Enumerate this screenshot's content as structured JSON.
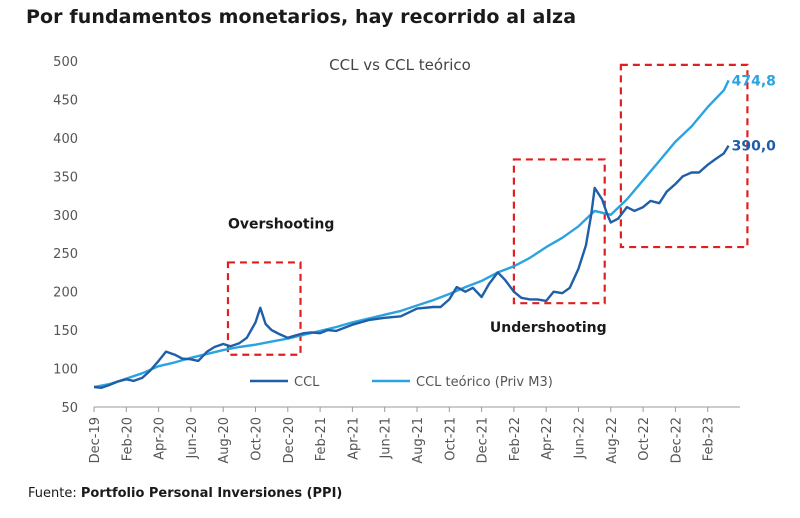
{
  "headline": "Por fundamentos monetarios, hay recorrido al alza",
  "source": {
    "prefix": "Fuente:",
    "name": "Portfolio Personal Inversiones (PPI)"
  },
  "colors": {
    "ccl": "#1f5fa8",
    "teorico": "#2ba3e0",
    "highlight": "#e02020"
  },
  "chart_data": {
    "type": "line",
    "title": "CCL vs CCL teórico",
    "xlabel": "",
    "ylabel": "",
    "ylim": [
      50,
      500
    ],
    "yticks": [
      50,
      100,
      150,
      200,
      250,
      300,
      350,
      400,
      450,
      500
    ],
    "xlim": [
      "2019-12",
      "2023-04"
    ],
    "xticks": [
      "Dec-19",
      "Feb-20",
      "Apr-20",
      "Jun-20",
      "Aug-20",
      "Oct-20",
      "Dec-20",
      "Feb-21",
      "Apr-21",
      "Jun-21",
      "Aug-21",
      "Oct-21",
      "Dec-21",
      "Feb-22",
      "Apr-22",
      "Jun-22",
      "Aug-22",
      "Oct-22",
      "Dec-22",
      "Feb-23"
    ],
    "legend_position": "bottom",
    "grid": false,
    "series": [
      {
        "name": "CCL",
        "x": [
          "2019-12-01",
          "2019-12-15",
          "2020-01-01",
          "2020-01-15",
          "2020-02-01",
          "2020-02-15",
          "2020-03-01",
          "2020-03-15",
          "2020-04-01",
          "2020-04-15",
          "2020-05-01",
          "2020-05-15",
          "2020-06-01",
          "2020-06-15",
          "2020-07-01",
          "2020-07-15",
          "2020-08-01",
          "2020-08-15",
          "2020-09-01",
          "2020-09-15",
          "2020-10-01",
          "2020-10-10",
          "2020-10-20",
          "2020-11-01",
          "2020-11-15",
          "2020-12-01",
          "2020-12-15",
          "2021-01-01",
          "2021-01-15",
          "2021-02-01",
          "2021-02-15",
          "2021-03-01",
          "2021-04-01",
          "2021-05-01",
          "2021-06-01",
          "2021-07-01",
          "2021-08-01",
          "2021-09-01",
          "2021-09-15",
          "2021-10-01",
          "2021-10-15",
          "2021-11-01",
          "2021-11-15",
          "2021-12-01",
          "2021-12-15",
          "2022-01-01",
          "2022-01-15",
          "2022-02-01",
          "2022-02-15",
          "2022-03-01",
          "2022-03-15",
          "2022-04-01",
          "2022-04-15",
          "2022-05-01",
          "2022-05-15",
          "2022-06-01",
          "2022-06-15",
          "2022-06-25",
          "2022-07-01",
          "2022-07-15",
          "2022-07-25",
          "2022-08-01",
          "2022-08-15",
          "2022-09-01",
          "2022-09-15",
          "2022-10-01",
          "2022-10-15",
          "2022-11-01",
          "2022-11-15",
          "2022-12-01",
          "2022-12-15",
          "2023-01-01",
          "2023-01-15",
          "2023-02-01",
          "2023-02-15",
          "2023-03-01",
          "2023-03-10"
        ],
        "values": [
          76,
          75,
          79,
          83,
          86,
          84,
          88,
          97,
          110,
          122,
          118,
          113,
          112,
          110,
          122,
          128,
          132,
          129,
          133,
          140,
          160,
          179,
          158,
          150,
          145,
          140,
          143,
          146,
          147,
          146,
          150,
          149,
          157,
          163,
          166,
          168,
          178,
          180,
          180,
          190,
          206,
          200,
          205,
          193,
          210,
          225,
          215,
          200,
          192,
          190,
          190,
          188,
          200,
          198,
          205,
          230,
          260,
          300,
          335,
          320,
          300,
          290,
          295,
          310,
          305,
          310,
          318,
          315,
          330,
          340,
          350,
          355,
          355,
          365,
          372,
          380,
          390
        ],
        "end_label": "390,0"
      },
      {
        "name": "CCL teórico (Priv M3)",
        "x": [
          "2019-12-01",
          "2020-01-01",
          "2020-02-01",
          "2020-03-01",
          "2020-04-01",
          "2020-05-01",
          "2020-06-01",
          "2020-07-01",
          "2020-08-01",
          "2020-09-01",
          "2020-10-01",
          "2020-11-01",
          "2020-12-01",
          "2021-01-01",
          "2021-02-01",
          "2021-03-01",
          "2021-04-01",
          "2021-05-01",
          "2021-06-01",
          "2021-07-01",
          "2021-08-01",
          "2021-09-01",
          "2021-10-01",
          "2021-11-01",
          "2021-12-01",
          "2022-01-01",
          "2022-02-01",
          "2022-03-01",
          "2022-04-01",
          "2022-05-01",
          "2022-06-01",
          "2022-07-01",
          "2022-08-01",
          "2022-09-01",
          "2022-10-01",
          "2022-11-01",
          "2022-12-01",
          "2023-01-01",
          "2023-02-01",
          "2023-03-01",
          "2023-03-10"
        ],
        "values": [
          76,
          80,
          87,
          94,
          103,
          108,
          114,
          119,
          124,
          128,
          131,
          135,
          139,
          144,
          149,
          154,
          160,
          165,
          170,
          175,
          182,
          189,
          197,
          206,
          214,
          225,
          233,
          244,
          258,
          270,
          285,
          305,
          300,
          320,
          345,
          370,
          395,
          415,
          440,
          462,
          474.8
        ],
        "end_label": "474,8"
      }
    ],
    "annotations": [
      {
        "text": "Overshooting",
        "box_x": [
          "2020-08-10",
          "2020-12-25"
        ],
        "box_y": [
          118,
          238
        ]
      },
      {
        "text": "Undershooting",
        "box_x": [
          "2022-02-01",
          "2022-07-20"
        ],
        "box_y": [
          185,
          372
        ]
      },
      {
        "text": "",
        "box_x": [
          "2022-08-20",
          "2023-04-15"
        ],
        "box_y": [
          258,
          495
        ]
      }
    ]
  }
}
